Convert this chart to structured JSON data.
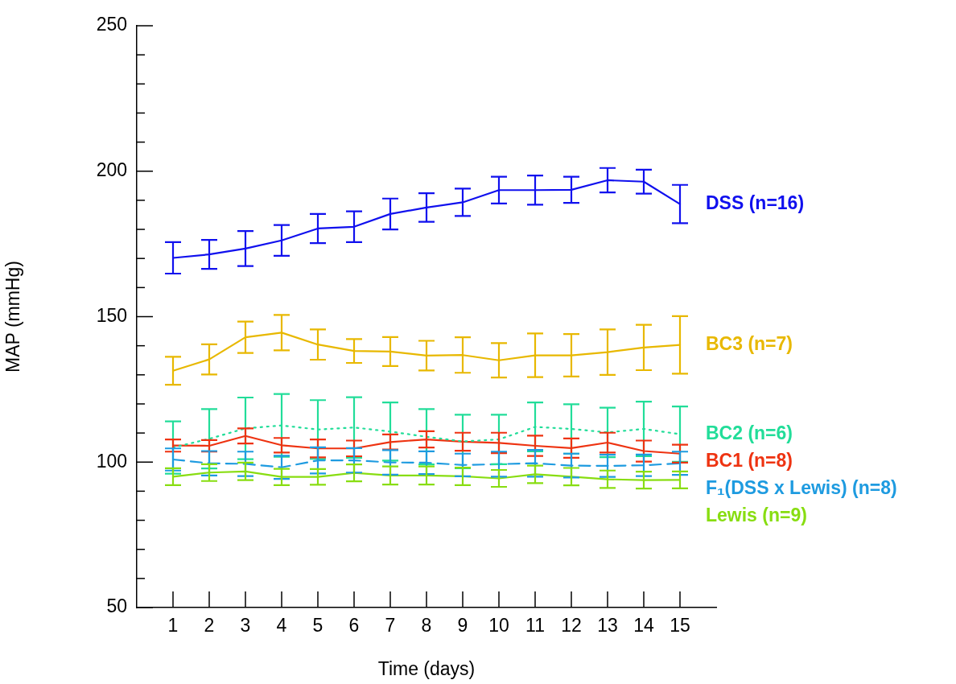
{
  "chart_data": {
    "type": "line",
    "xlabel": "Time (days)",
    "ylabel": "MAP (mmHg)",
    "x": [
      1,
      2,
      3,
      4,
      5,
      6,
      7,
      8,
      9,
      10,
      11,
      12,
      13,
      14,
      15
    ],
    "xlim": [
      0,
      16
    ],
    "xticks": [
      1,
      2,
      3,
      4,
      5,
      6,
      7,
      8,
      9,
      10,
      11,
      12,
      13,
      14,
      15
    ],
    "ylim": [
      50,
      250
    ],
    "yticks": [
      50,
      {
        "value": 60,
        "label": null
      },
      {
        "value": 70,
        "label": null
      },
      {
        "value": 80,
        "label": null
      },
      {
        "value": 90,
        "label": null
      },
      100,
      {
        "value": 110,
        "label": null
      },
      {
        "value": 120,
        "label": null
      },
      {
        "value": 130,
        "label": null
      },
      {
        "value": 140,
        "label": null
      },
      150,
      {
        "value": 160,
        "label": null
      },
      {
        "value": 170,
        "label": null
      },
      {
        "value": 180,
        "label": null
      },
      {
        "value": 190,
        "label": null
      },
      200,
      {
        "value": 210,
        "label": null
      },
      {
        "value": 220,
        "label": null
      },
      {
        "value": 230,
        "label": null
      },
      {
        "value": 240,
        "label": null
      },
      250
    ],
    "grid": false,
    "legend": false,
    "marker": "none",
    "series": [
      {
        "name": "DSS (n=16)",
        "color": "#1010ee",
        "line_style": "solid",
        "values": [
          170.2,
          171.4,
          173.4,
          176.2,
          180.3,
          180.9,
          185.3,
          187.5,
          189.3,
          193.5,
          193.5,
          193.6,
          196.9,
          196.4,
          188.7
        ],
        "errors": [
          5.4,
          5,
          6,
          5.3,
          5,
          5.3,
          5.3,
          4.9,
          4.7,
          4.6,
          5,
          4.5,
          4.2,
          4.1,
          6.6
        ]
      },
      {
        "name": "BC3 (n=7)",
        "color": "#e8b800",
        "line_style": "solid",
        "values": [
          131.4,
          135.3,
          142.9,
          144.5,
          140.4,
          138.2,
          138,
          136.6,
          136.8,
          135,
          136.7,
          136.7,
          137.8,
          139.4,
          140.3
        ],
        "errors": [
          4.8,
          5.2,
          5.4,
          6.1,
          5.2,
          4.1,
          5,
          5.1,
          6.1,
          5.9,
          7.5,
          7.3,
          7.8,
          7.8,
          9.9
        ]
      },
      {
        "name": "BC2 (n=6)",
        "color": "#22dd99",
        "line_style": "dotted",
        "values": [
          105,
          108,
          111.6,
          112.6,
          111.2,
          111.9,
          110.5,
          108.7,
          107.1,
          107.8,
          112.1,
          111.4,
          110.2,
          111.4,
          109.6
        ],
        "errors": [
          9,
          10.2,
          10.6,
          10.8,
          10.1,
          10.4,
          10,
          9.5,
          9.2,
          8.5,
          8.4,
          8.5,
          8.5,
          9.4,
          9.5
        ]
      },
      {
        "name": "BC1 (n=8)",
        "color": "#ee3311",
        "line_style": "solid",
        "values": [
          105.7,
          105.6,
          109,
          105.8,
          104.7,
          104.7,
          106.9,
          107.8,
          107,
          106.6,
          105.6,
          104.8,
          106.7,
          103.8,
          102.9
        ],
        "errors": [
          2.1,
          2,
          2.6,
          2.5,
          3.1,
          2.7,
          2.6,
          2.8,
          3.1,
          3.5,
          3.5,
          3.3,
          3.4,
          3.6,
          3.1
        ]
      },
      {
        "name": "F₁(DSS x Lewis) (n=8)",
        "color": "#1e9be0",
        "line_style": "dashed",
        "values": [
          100.9,
          99.6,
          99.4,
          98.2,
          100.6,
          100.6,
          99.9,
          99.8,
          99,
          99.3,
          99.6,
          98.8,
          98.7,
          98.9,
          99.6
        ],
        "errors": [
          3.8,
          4.2,
          4.2,
          4,
          4.5,
          4.2,
          4.2,
          3.9,
          3.9,
          4.3,
          4.6,
          4.1,
          3.8,
          3.7,
          4
        ]
      },
      {
        "name": "Lewis (n=9)",
        "color": "#88dd11",
        "line_style": "solid",
        "values": [
          95,
          96.4,
          96.8,
          94.9,
          94.9,
          96.3,
          95.4,
          95.4,
          95.1,
          94.4,
          95.8,
          95,
          94.1,
          93.8,
          93.9
        ],
        "errors": [
          2.9,
          2.9,
          3,
          2.8,
          2.7,
          2.9,
          3.1,
          3.1,
          3,
          2.9,
          3,
          3,
          3,
          2.9,
          2.9
        ]
      }
    ]
  }
}
